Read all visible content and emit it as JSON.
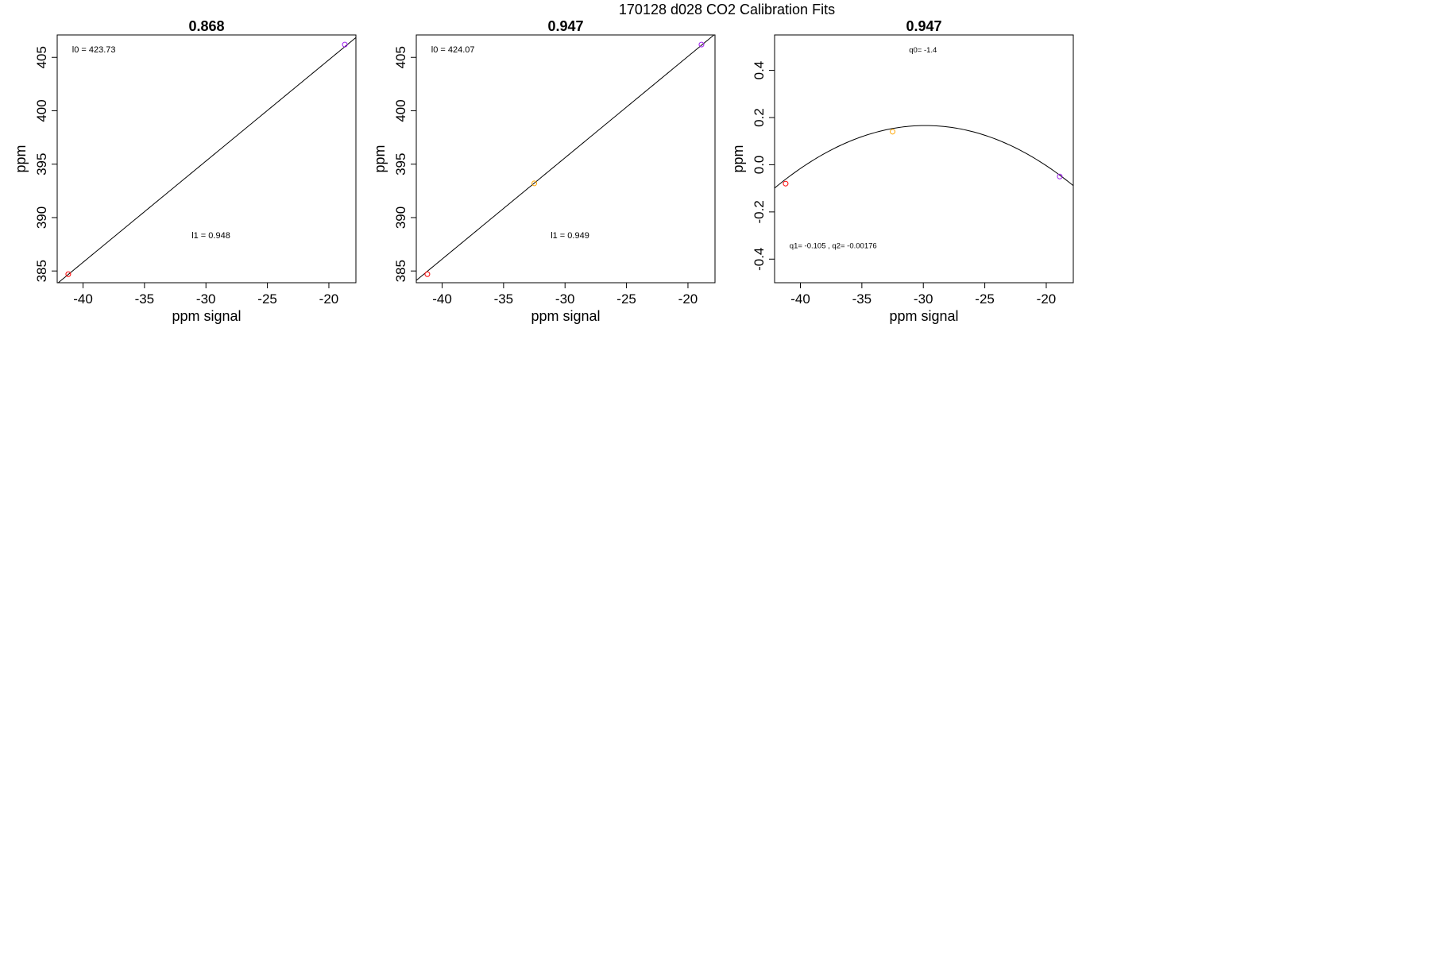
{
  "figure": {
    "super_title": "170128   d028   CO2 Calibration Fits"
  },
  "chart_data": [
    {
      "type": "scatter",
      "title": "0.868",
      "xlabel": "ppm signal",
      "ylabel": "ppm",
      "xlim": [
        -42.1,
        -17.8
      ],
      "ylim": [
        383.9,
        407.1
      ],
      "xticks": [
        -40,
        -35,
        -30,
        -25,
        -20
      ],
      "xtick_labels": [
        "-40",
        "-35",
        "-30",
        "-25",
        "-20"
      ],
      "yticks": [
        385,
        390,
        395,
        400,
        405
      ],
      "ytick_labels": [
        "385",
        "390",
        "395",
        "400",
        "405"
      ],
      "fit": {
        "kind": "linear",
        "intercept": 423.73,
        "slope": 0.948
      },
      "points": [
        {
          "x": -41.2,
          "y": 384.7,
          "color": "#ff0000"
        },
        {
          "x": -18.7,
          "y": 406.2,
          "color": "#a020f0"
        }
      ],
      "annotations": [
        {
          "id": "l0",
          "text": "l0 =  423.73",
          "ax": 0.05,
          "ay": 0.93
        },
        {
          "id": "l1",
          "text": "l1 =  0.948",
          "ax": 0.45,
          "ay": 0.18
        }
      ]
    },
    {
      "type": "scatter",
      "title": "0.947",
      "xlabel": "ppm signal",
      "ylabel": "ppm",
      "xlim": [
        -42.1,
        -17.8
      ],
      "ylim": [
        383.9,
        407.1
      ],
      "xticks": [
        -40,
        -35,
        -30,
        -25,
        -20
      ],
      "xtick_labels": [
        "-40",
        "-35",
        "-30",
        "-25",
        "-20"
      ],
      "yticks": [
        385,
        390,
        395,
        400,
        405
      ],
      "ytick_labels": [
        "385",
        "390",
        "395",
        "400",
        "405"
      ],
      "fit": {
        "kind": "linear",
        "intercept": 424.07,
        "slope": 0.949
      },
      "points": [
        {
          "x": -41.2,
          "y": 384.7,
          "color": "#ff0000"
        },
        {
          "x": -32.5,
          "y": 393.2,
          "color": "#ffa500"
        },
        {
          "x": -18.9,
          "y": 406.2,
          "color": "#a020f0"
        }
      ],
      "annotations": [
        {
          "id": "l0",
          "text": "l0 =  424.07",
          "ax": 0.05,
          "ay": 0.93
        },
        {
          "id": "l1",
          "text": "l1 =  0.949",
          "ax": 0.45,
          "ay": 0.18
        }
      ]
    },
    {
      "type": "scatter",
      "title": "0.947",
      "xlabel": "ppm signal",
      "ylabel": "ppm",
      "xlim": [
        -42.1,
        -17.8
      ],
      "ylim": [
        -0.5,
        0.55
      ],
      "xticks": [
        -40,
        -35,
        -30,
        -25,
        -20
      ],
      "xtick_labels": [
        "-40",
        "-35",
        "-30",
        "-25",
        "-20"
      ],
      "yticks": [
        -0.4,
        -0.2,
        0.0,
        0.2,
        0.4
      ],
      "ytick_labels": [
        "-0.4",
        "-0.2",
        "0.0",
        "0.2",
        "0.4"
      ],
      "fit": {
        "kind": "quadratic",
        "q0": -1.4,
        "q1": -0.105,
        "q2": -0.00176
      },
      "points": [
        {
          "x": -41.2,
          "y": -0.08,
          "color": "#ff0000"
        },
        {
          "x": -32.5,
          "y": 0.14,
          "color": "#ffa500"
        },
        {
          "x": -18.9,
          "y": -0.05,
          "color": "#a020f0"
        }
      ],
      "annotations": [
        {
          "id": "q0",
          "text": "q0= -1.4",
          "ax": 0.45,
          "ay": 0.93,
          "small": true
        },
        {
          "id": "q1q2",
          "text": "q1= -0.105 , q2= -0.00176",
          "ax": 0.05,
          "ay": 0.14,
          "small": true
        }
      ]
    }
  ]
}
